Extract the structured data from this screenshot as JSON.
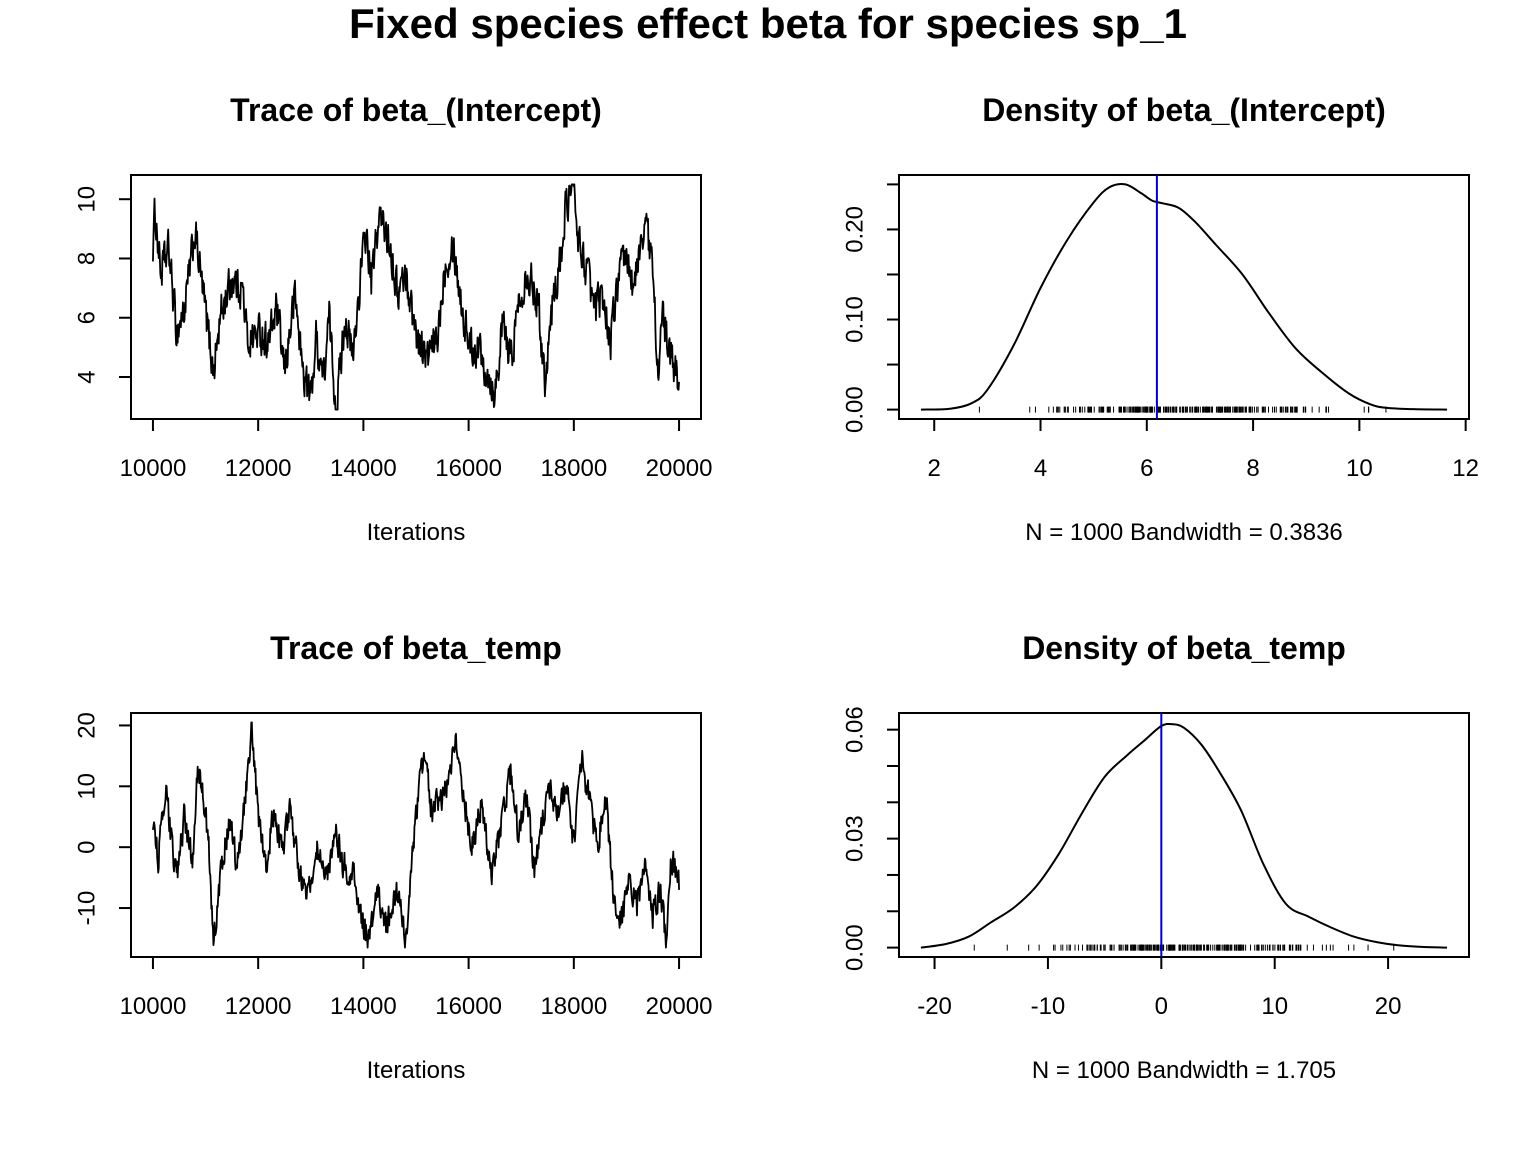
{
  "figure": {
    "title": "Fixed species effect beta for species sp_1"
  },
  "colors": {
    "line": "#000000",
    "mean_line": "#0000cc",
    "background": "#ffffff"
  },
  "chart_data": [
    {
      "id": "trace-intercept",
      "type": "line",
      "title": "Trace of beta_(Intercept)",
      "xlabel": "Iterations",
      "ylabel": "",
      "xlim": [
        10000,
        20000
      ],
      "ylim": [
        2.9,
        10.5
      ],
      "xticks": [
        10000,
        12000,
        14000,
        16000,
        18000,
        20000
      ],
      "yticks": [
        4,
        6,
        8,
        10
      ],
      "x_start": 10000,
      "x_step": 10,
      "anchor_points": [
        [
          10000,
          8.4
        ],
        [
          10040,
          9.6
        ],
        [
          10150,
          7.5
        ],
        [
          10300,
          8.3
        ],
        [
          10450,
          5.5
        ],
        [
          10600,
          6.3
        ],
        [
          10800,
          8.9
        ],
        [
          11000,
          6.2
        ],
        [
          11150,
          4.2
        ],
        [
          11300,
          6.2
        ],
        [
          11500,
          7.3
        ],
        [
          11700,
          7.0
        ],
        [
          11800,
          5.2
        ],
        [
          12000,
          5.5
        ],
        [
          12200,
          5.2
        ],
        [
          12350,
          6.3
        ],
        [
          12500,
          4.2
        ],
        [
          12600,
          5.5
        ],
        [
          12700,
          6.8
        ],
        [
          12850,
          4.2
        ],
        [
          13000,
          3.3
        ],
        [
          13100,
          5.3
        ],
        [
          13250,
          4.0
        ],
        [
          13350,
          6.0
        ],
        [
          13480,
          2.9
        ],
        [
          13650,
          6.0
        ],
        [
          13800,
          4.6
        ],
        [
          13950,
          7.5
        ],
        [
          14050,
          8.9
        ],
        [
          14150,
          7.2
        ],
        [
          14300,
          9.4
        ],
        [
          14500,
          8.6
        ],
        [
          14650,
          6.8
        ],
        [
          14800,
          7.5
        ],
        [
          15000,
          5.5
        ],
        [
          15200,
          4.6
        ],
        [
          15400,
          5.2
        ],
        [
          15550,
          7.8
        ],
        [
          15700,
          8.6
        ],
        [
          15900,
          6.0
        ],
        [
          16050,
          5.0
        ],
        [
          16200,
          5.0
        ],
        [
          16350,
          4.2
        ],
        [
          16500,
          3.5
        ],
        [
          16650,
          5.8
        ],
        [
          16800,
          4.5
        ],
        [
          16950,
          6.5
        ],
        [
          17100,
          7.6
        ],
        [
          17300,
          6.8
        ],
        [
          17450,
          4.0
        ],
        [
          17600,
          6.5
        ],
        [
          17750,
          8.0
        ],
        [
          17850,
          9.8
        ],
        [
          17980,
          10.5
        ],
        [
          18100,
          8.5
        ],
        [
          18250,
          7.6
        ],
        [
          18400,
          6.2
        ],
        [
          18550,
          6.8
        ],
        [
          18700,
          5.2
        ],
        [
          18850,
          7.5
        ],
        [
          19000,
          7.9
        ],
        [
          19150,
          7.0
        ],
        [
          19350,
          9.4
        ],
        [
          19500,
          7.6
        ],
        [
          19600,
          4.3
        ],
        [
          19700,
          6.0
        ],
        [
          19850,
          4.5
        ],
        [
          20000,
          4.0
        ]
      ],
      "noise_amplitude": 0.9
    },
    {
      "id": "density-intercept",
      "type": "line",
      "title": "Density of beta_(Intercept)",
      "xlabel": "N = 1000   Bandwidth = 0.3836",
      "ylabel": "",
      "xlim": [
        1.75,
        11.65
      ],
      "ylim": [
        0,
        0.25
      ],
      "xticks": [
        2,
        4,
        6,
        8,
        10,
        12
      ],
      "yticks": [
        0,
        0.05,
        0.1,
        0.15,
        0.2,
        0.25
      ],
      "ytick_labels": [
        "0.00",
        "",
        "0.10",
        "",
        "0.20",
        ""
      ],
      "x": [
        1.75,
        2.3,
        2.7,
        3.0,
        3.5,
        4.0,
        4.5,
        5.0,
        5.3,
        5.6,
        5.9,
        6.1,
        6.3,
        6.6,
        6.9,
        7.3,
        7.8,
        8.3,
        8.8,
        9.3,
        9.8,
        10.2,
        10.5,
        11.0,
        11.65
      ],
      "y": [
        0.0,
        0.001,
        0.007,
        0.022,
        0.072,
        0.135,
        0.188,
        0.23,
        0.247,
        0.25,
        0.24,
        0.232,
        0.229,
        0.224,
        0.209,
        0.183,
        0.15,
        0.107,
        0.068,
        0.041,
        0.018,
        0.006,
        0.002,
        0.0005,
        0.0
      ],
      "mean_line": 6.19,
      "rug_range": [
        2.85,
        10.5
      ]
    },
    {
      "id": "trace-temp",
      "type": "line",
      "title": "Trace of beta_temp",
      "xlabel": "Iterations",
      "ylabel": "",
      "xlim": [
        10000,
        20000
      ],
      "ylim": [
        -16.5,
        20.5
      ],
      "xticks": [
        10000,
        12000,
        14000,
        16000,
        18000,
        20000
      ],
      "yticks": [
        -10,
        0,
        10,
        20
      ],
      "x_start": 10000,
      "x_step": 10,
      "anchor_points": [
        [
          10000,
          4.0
        ],
        [
          10100,
          -1.5
        ],
        [
          10250,
          8.5
        ],
        [
          10450,
          -5.5
        ],
        [
          10600,
          5.5
        ],
        [
          10750,
          -3.0
        ],
        [
          10850,
          14.0
        ],
        [
          10950,
          8.0
        ],
        [
          11050,
          2.0
        ],
        [
          11150,
          -15.5
        ],
        [
          11300,
          -4.0
        ],
        [
          11450,
          5.0
        ],
        [
          11600,
          -3.0
        ],
        [
          11750,
          8.0
        ],
        [
          11870,
          20.0
        ],
        [
          12000,
          5.0
        ],
        [
          12150,
          -2.0
        ],
        [
          12300,
          5.5
        ],
        [
          12450,
          -1.0
        ],
        [
          12600,
          6.0
        ],
        [
          12800,
          -4.0
        ],
        [
          12950,
          -8.5
        ],
        [
          13100,
          0.5
        ],
        [
          13300,
          -6.0
        ],
        [
          13450,
          3.0
        ],
        [
          13600,
          -2.5
        ],
        [
          13800,
          -4.5
        ],
        [
          13950,
          -11.0
        ],
        [
          14100,
          -16.0
        ],
        [
          14250,
          -7.0
        ],
        [
          14450,
          -13.0
        ],
        [
          14650,
          -7.5
        ],
        [
          14800,
          -15.0
        ],
        [
          15000,
          4.5
        ],
        [
          15150,
          16.0
        ],
        [
          15300,
          6.0
        ],
        [
          15450,
          8.0
        ],
        [
          15600,
          10.0
        ],
        [
          15750,
          16.5
        ],
        [
          15900,
          9.0
        ],
        [
          16050,
          0.5
        ],
        [
          16250,
          7.0
        ],
        [
          16450,
          -5.0
        ],
        [
          16600,
          3.0
        ],
        [
          16800,
          12.0
        ],
        [
          16950,
          2.5
        ],
        [
          17100,
          8.0
        ],
        [
          17250,
          -4.5
        ],
        [
          17400,
          4.0
        ],
        [
          17550,
          10.0
        ],
        [
          17700,
          5.0
        ],
        [
          17850,
          11.0
        ],
        [
          18000,
          0.0
        ],
        [
          18150,
          14.5
        ],
        [
          18300,
          7.0
        ],
        [
          18450,
          0.5
        ],
        [
          18600,
          9.0
        ],
        [
          18750,
          -8.0
        ],
        [
          18900,
          -12.5
        ],
        [
          19050,
          -5.0
        ],
        [
          19200,
          -10.0
        ],
        [
          19350,
          -2.0
        ],
        [
          19500,
          -11.0
        ],
        [
          19650,
          -7.0
        ],
        [
          19750,
          -15.5
        ],
        [
          19850,
          -2.0
        ],
        [
          20000,
          -5.5
        ]
      ],
      "noise_amplitude": 3.2
    },
    {
      "id": "density-temp",
      "type": "line",
      "title": "Density of beta_temp",
      "xlabel": "N = 1000   Bandwidth = 1.705",
      "ylabel": "",
      "xlim": [
        -21.2,
        25.2
      ],
      "ylim": [
        0,
        0.062
      ],
      "xticks": [
        -20,
        -10,
        0,
        10,
        20
      ],
      "yticks": [
        0,
        0.01,
        0.02,
        0.03,
        0.04,
        0.05,
        0.06
      ],
      "ytick_labels": [
        "0.00",
        "",
        "",
        "0.03",
        "",
        "",
        "0.06"
      ],
      "x": [
        -21.2,
        -19.0,
        -17.0,
        -15.0,
        -13.0,
        -11.0,
        -9.0,
        -7.0,
        -5.0,
        -3.0,
        -1.5,
        0.0,
        1.0,
        2.0,
        3.5,
        5.0,
        7.0,
        9.0,
        11.0,
        13.0,
        15.0,
        17.0,
        19.0,
        21.0,
        23.0,
        25.2
      ],
      "y": [
        0.0,
        0.001,
        0.003,
        0.007,
        0.011,
        0.017,
        0.026,
        0.037,
        0.047,
        0.053,
        0.057,
        0.061,
        0.0615,
        0.0605,
        0.056,
        0.049,
        0.038,
        0.023,
        0.012,
        0.0085,
        0.0055,
        0.003,
        0.0015,
        0.0006,
        0.0002,
        0.0
      ],
      "mean_line": 0.0,
      "rug_range": [
        -16.5,
        20.5
      ]
    }
  ]
}
